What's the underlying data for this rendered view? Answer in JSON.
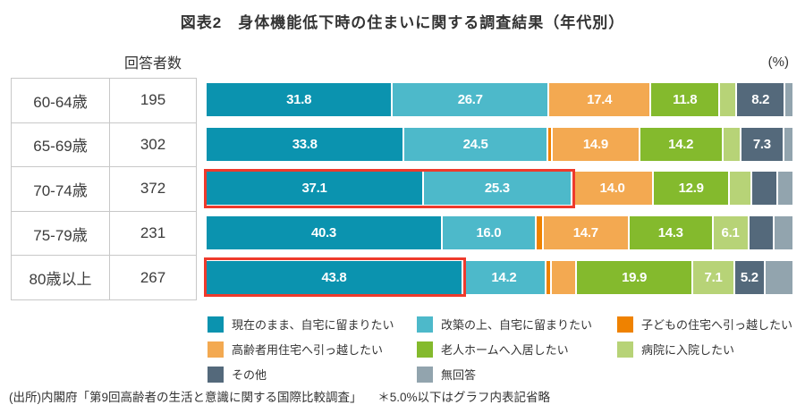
{
  "title": "図表2　身体機能低下時の住まいに関する調査結果（年代別）",
  "unit_label": "(%)",
  "table": {
    "header": "回答者数"
  },
  "colors": {
    "series": [
      "#0b93af",
      "#4db9ca",
      "#ef8200",
      "#f3a951",
      "#84ba2d",
      "#b7d377",
      "#54697b",
      "#92a4ae"
    ],
    "highlight": "#ee3a2c",
    "border": "#c8c8c8"
  },
  "chart_data": {
    "type": "bar",
    "stacked": true,
    "orientation": "horizontal",
    "unit": "%",
    "xlim": [
      0,
      100
    ],
    "grid": false,
    "legend_position": "bottom",
    "title": "図表2　身体機能低下時の住まいに関する調査結果（年代別）",
    "series_names": [
      "現在のまま、自宅に留まりたい",
      "改築の上、自宅に留まりたい",
      "子どもの住宅へ引っ越したい",
      "高齢者用住宅へ引っ越したい",
      "老人ホームへ入居したい",
      "病院に入院したい",
      "その他",
      "無回答"
    ],
    "categories": [
      "60-64歳",
      "65-69歳",
      "70-74歳",
      "75-79歳",
      "80歳以上"
    ],
    "respondents": [
      195,
      302,
      372,
      231,
      267
    ],
    "label_rule": "values of 5.0% or less are not labeled in the bars",
    "rows": [
      {
        "age": "60-64歳",
        "n": "195",
        "values": [
          31.8,
          26.7,
          0.0,
          17.4,
          11.8,
          2.9,
          8.2,
          1.2
        ],
        "labels": [
          "31.8",
          "26.7",
          "",
          "17.4",
          "11.8",
          "",
          "8.2",
          ""
        ],
        "highlight_span": 0
      },
      {
        "age": "65-69歳",
        "n": "302",
        "values": [
          33.8,
          24.5,
          0.8,
          14.9,
          14.2,
          3.1,
          7.3,
          1.4
        ],
        "labels": [
          "33.8",
          "24.5",
          "",
          "14.9",
          "14.2",
          "",
          "7.3",
          ""
        ],
        "highlight_span": 0
      },
      {
        "age": "70-74歳",
        "n": "372",
        "values": [
          37.1,
          25.3,
          0.0,
          14.0,
          12.9,
          3.8,
          4.5,
          2.4
        ],
        "labels": [
          "37.1",
          "25.3",
          "",
          "14.0",
          "12.9",
          "",
          "",
          ""
        ],
        "highlight_span": 2
      },
      {
        "age": "75-79歳",
        "n": "231",
        "values": [
          40.3,
          16.0,
          1.2,
          14.7,
          14.3,
          6.1,
          4.4,
          3.0
        ],
        "labels": [
          "40.3",
          "16.0",
          "",
          "14.7",
          "14.3",
          "6.1",
          "",
          ""
        ],
        "highlight_span": 0
      },
      {
        "age": "80歳以上",
        "n": "267",
        "values": [
          43.8,
          14.2,
          0.9,
          4.3,
          19.9,
          7.1,
          5.2,
          4.6
        ],
        "labels": [
          "43.8",
          "14.2",
          "",
          "",
          "19.9",
          "7.1",
          "5.2",
          ""
        ],
        "highlight_span": 1
      }
    ]
  },
  "legend": {
    "items": [
      {
        "label": "現在のまま、自宅に留まりたい",
        "color": "#0b93af"
      },
      {
        "label": "改築の上、自宅に留まりたい",
        "color": "#4db9ca"
      },
      {
        "label": "子どもの住宅へ引っ越したい",
        "color": "#ef8200"
      },
      {
        "label": "高齢者用住宅へ引っ越したい",
        "color": "#f3a951"
      },
      {
        "label": "老人ホームへ入居したい",
        "color": "#84ba2d"
      },
      {
        "label": "病院に入院したい",
        "color": "#b7d377"
      },
      {
        "label": "その他",
        "color": "#54697b"
      },
      {
        "label": "無回答",
        "color": "#92a4ae"
      }
    ]
  },
  "footer": {
    "source": "(出所)内閣府「第9回高齢者の生活と意識に関する国際比較調査」",
    "note": "＊5.0%以下はグラフ内表記省略"
  }
}
